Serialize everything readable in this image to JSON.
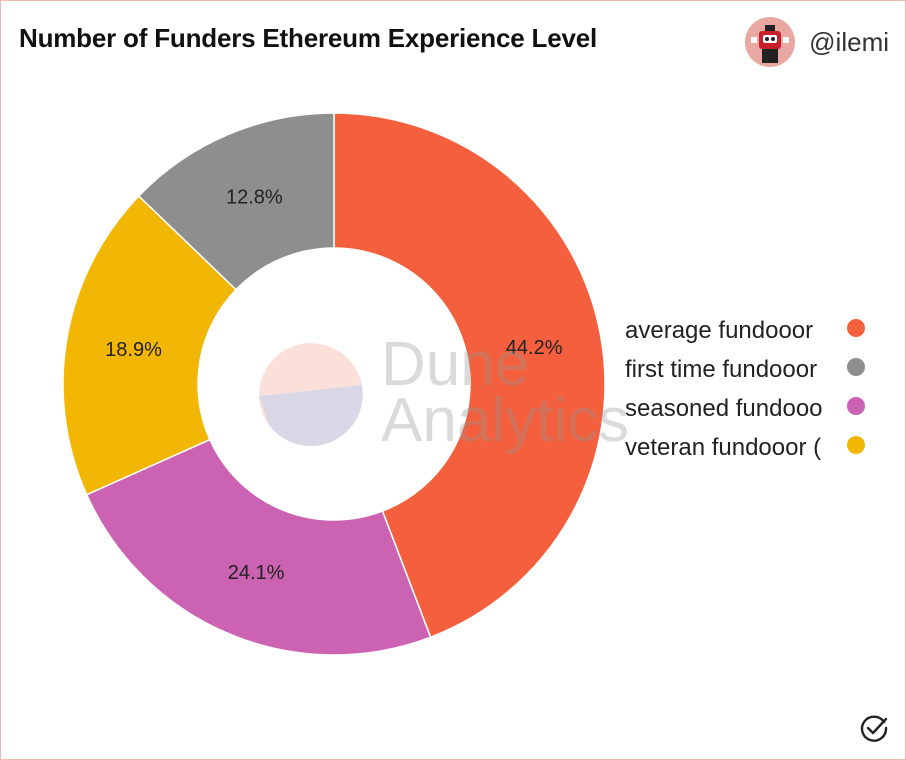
{
  "header": {
    "title": "Number of Funders Ethereum Experience Level",
    "username": "@ilemi"
  },
  "watermark": {
    "line1": "Dune",
    "line2": "Analytics"
  },
  "icons": {
    "avatar": "avatar-icon",
    "check": "check-circle-icon",
    "logo": "dune-logo-icon"
  },
  "chart_data": {
    "type": "pie",
    "donut": true,
    "title": "Number of Funders Ethereum Experience Level",
    "legend_position": "right",
    "slices": [
      {
        "name": "average fundooor",
        "legend_text": "average fundooor",
        "value": 44.2,
        "label": "44.2%",
        "color": "#f4603d"
      },
      {
        "name": "seasoned fundooor",
        "legend_text": "seasoned fundooo",
        "value": 24.1,
        "label": "24.1%",
        "color": "#cc62b2"
      },
      {
        "name": "veteran fundooor",
        "legend_text": "veteran fundooor (",
        "value": 18.9,
        "label": "18.9%",
        "color": "#f2b705"
      },
      {
        "name": "first time fundooor",
        "legend_text": "first time fundooor",
        "value": 12.8,
        "label": "12.8%",
        "color": "#8e8e8e"
      }
    ],
    "legend": [
      {
        "text": "average fundooor",
        "color": "#f4603d"
      },
      {
        "text": "first time fundooor",
        "color": "#8e8e8e"
      },
      {
        "text": "seasoned fundooo",
        "color": "#cc62b2"
      },
      {
        "text": "veteran fundooor (",
        "color": "#f2b705"
      }
    ]
  }
}
